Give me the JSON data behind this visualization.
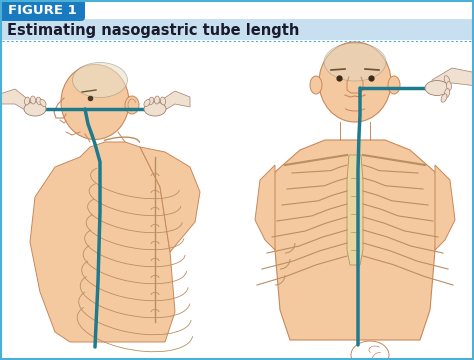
{
  "figure_label": "FIGURE 1",
  "title": "Estimating nasogastric tube length",
  "figure_label_bg": "#1a7abf",
  "title_bg": "#c8dff0",
  "border_color": "#4ab0d8",
  "dotted_line_color": "#4ab0d8",
  "tube_color": "#1e7a8c",
  "skin_color": "#f5c9a0",
  "skin_edge": "#c9885a",
  "rib_color": "#d4b887",
  "rib_edge": "#b89060",
  "bone_fill": "#e8d5a0",
  "bg_color": "#ffffff",
  "title_fontsize": 10.5,
  "label_fontsize": 9.5
}
